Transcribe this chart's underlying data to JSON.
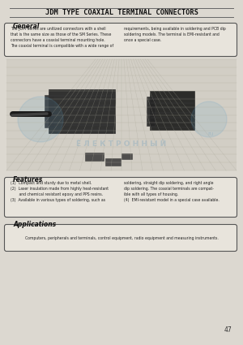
{
  "title": "JDM TYPE COAXIAL TERMINAL CONNECTORS",
  "page_bg": "#dcd8d0",
  "general_heading": "General",
  "general_text_left": "The JDM Series are unitized connectors with a shell\nthat is the same size as those of the SM Series. These\nconnectors have a coaxial terminal mounting hole.\nThe coaxial terminal is compatible with a wide range of",
  "general_text_right": "requirements, being available in soldering and PCB dip\nsoldering models. The terminal is EMI-resistant and\nonce a special case.",
  "features_heading": "Features",
  "features_text_left": "(1)  Compact and sturdy due to metal shell.\n(2)  Laser insulation made from highly heat-resistant\n       and chemical resistant epoxy and PPS resins.\n(3)  Available in various types of soldering, such as",
  "features_text_right": "soldering, straight dip soldering, and right angle\ndip soldering. The coaxial terminals are compat-\nible with all types of housing.\n(4)  EMI-resistant model in a special case available.",
  "applications_heading": "Applications",
  "applications_text": "Computers, peripherals and terminals, control equipment, radio equipment and measuring instruments.",
  "page_number": "47",
  "watermark_text": "Ё Л Е К Т Р О Н Н Ы Й"
}
